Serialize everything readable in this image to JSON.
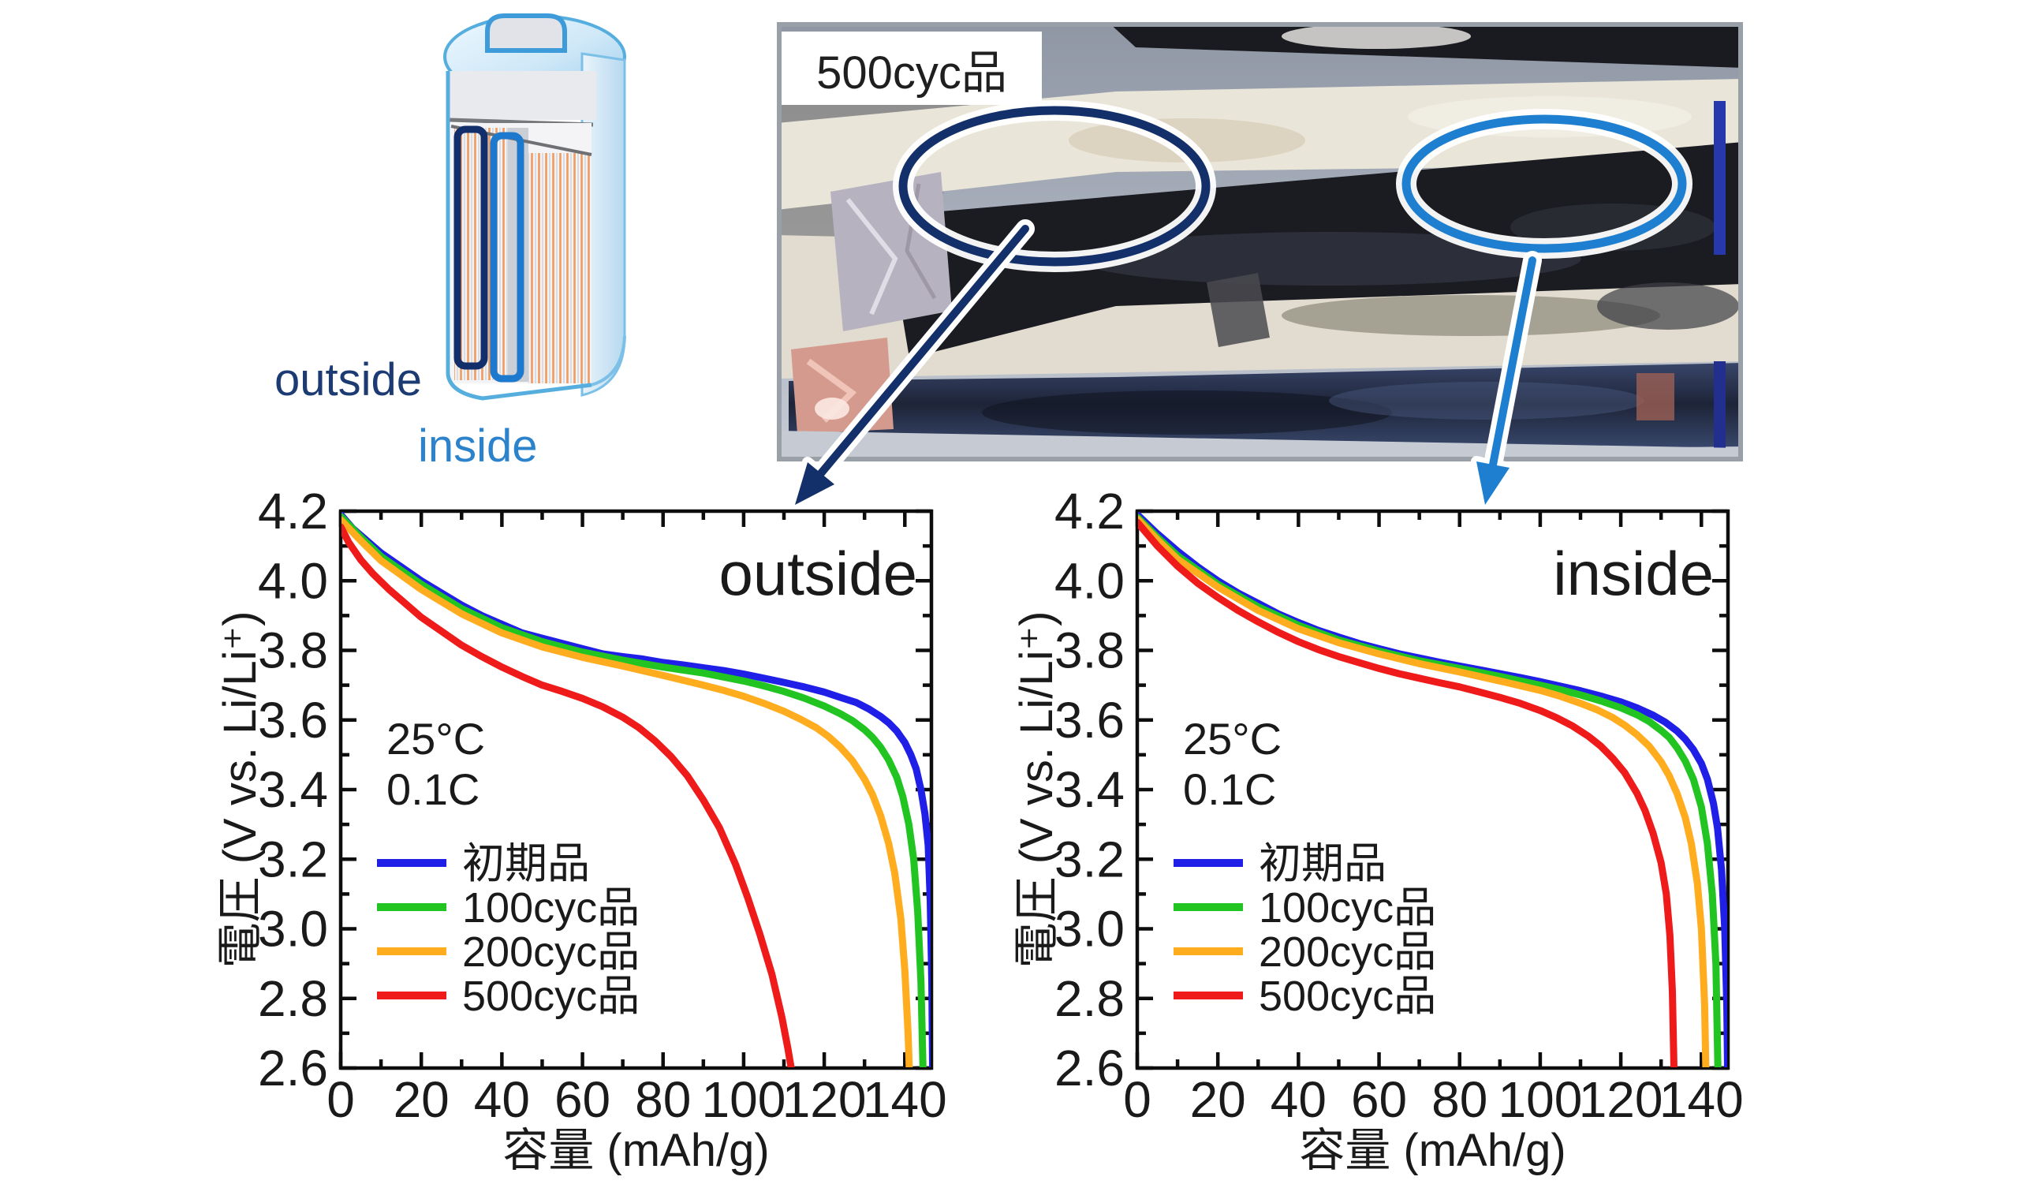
{
  "figure": {
    "description_labels": {
      "outside": "outside",
      "inside": "inside"
    },
    "photo_label": "500cyc品"
  },
  "colors": {
    "outside_accent": "#14306b",
    "inside_accent": "#1e7fd0",
    "series_initial": "#1f1fe8",
    "series_100cyc": "#21c421",
    "series_200cyc": "#ffac1e",
    "series_500cyc": "#ef1a1a"
  },
  "chart_data": [
    {
      "type": "line",
      "title": "outside",
      "xlabel": "容量 (mAh/g)",
      "ylabel": "電圧 (V vs. Li/Li⁺)",
      "xlim": [
        0,
        146.6
      ],
      "ylim": [
        2.6,
        4.2
      ],
      "x_ticks": [
        0,
        20,
        40,
        60,
        80,
        100,
        120,
        140
      ],
      "y_ticks": [
        2.6,
        2.8,
        3.0,
        3.2,
        3.4,
        3.6,
        3.8,
        4.0,
        4.2
      ],
      "grid": false,
      "legend_position": "inside lower left",
      "annotations": [
        "25°C",
        "0.1C"
      ],
      "series": [
        {
          "name": "初期品",
          "color": "#1f1fe8",
          "points": [
            [
              0,
              4.19
            ],
            [
              3,
              4.15
            ],
            [
              6,
              4.12
            ],
            [
              10,
              4.08
            ],
            [
              15,
              4.04
            ],
            [
              20,
              4.0
            ],
            [
              25,
              3.965
            ],
            [
              30,
              3.93
            ],
            [
              35,
              3.9
            ],
            [
              40,
              3.875
            ],
            [
              45,
              3.85
            ],
            [
              50,
              3.835
            ],
            [
              55,
              3.82
            ],
            [
              60,
              3.805
            ],
            [
              65,
              3.79
            ],
            [
              70,
              3.782
            ],
            [
              75,
              3.775
            ],
            [
              80,
              3.765
            ],
            [
              85,
              3.758
            ],
            [
              90,
              3.75
            ],
            [
              95,
              3.742
            ],
            [
              100,
              3.732
            ],
            [
              105,
              3.72
            ],
            [
              110,
              3.708
            ],
            [
              115,
              3.695
            ],
            [
              120,
              3.68
            ],
            [
              124,
              3.665
            ],
            [
              128,
              3.65
            ],
            [
              131,
              3.632
            ],
            [
              134,
              3.61
            ],
            [
              136,
              3.592
            ],
            [
              138,
              3.568
            ],
            [
              140,
              3.535
            ],
            [
              141.5,
              3.5
            ],
            [
              142.8,
              3.46
            ],
            [
              144,
              3.4
            ],
            [
              145,
              3.33
            ],
            [
              145.8,
              3.24
            ],
            [
              146.3,
              3.08
            ],
            [
              146.7,
              2.85
            ],
            [
              146.9,
              2.6
            ]
          ]
        },
        {
          "name": "100cyc品",
          "color": "#21c421",
          "points": [
            [
              0,
              4.185
            ],
            [
              5,
              4.125
            ],
            [
              10,
              4.07
            ],
            [
              20,
              3.99
            ],
            [
              30,
              3.92
            ],
            [
              40,
              3.865
            ],
            [
              50,
              3.825
            ],
            [
              60,
              3.795
            ],
            [
              70,
              3.772
            ],
            [
              80,
              3.752
            ],
            [
              90,
              3.735
            ],
            [
              100,
              3.712
            ],
            [
              105,
              3.698
            ],
            [
              110,
              3.682
            ],
            [
              115,
              3.663
            ],
            [
              120,
              3.64
            ],
            [
              124,
              3.618
            ],
            [
              127,
              3.598
            ],
            [
              130,
              3.572
            ],
            [
              132,
              3.55
            ],
            [
              134,
              3.522
            ],
            [
              136,
              3.485
            ],
            [
              138,
              3.435
            ],
            [
              139.5,
              3.38
            ],
            [
              141,
              3.3
            ],
            [
              142.2,
              3.2
            ],
            [
              143.2,
              3.05
            ],
            [
              144,
              2.85
            ],
            [
              144.5,
              2.6
            ]
          ]
        },
        {
          "name": "200cyc品",
          "color": "#ffac1e",
          "points": [
            [
              0,
              4.175
            ],
            [
              5,
              4.115
            ],
            [
              10,
              4.058
            ],
            [
              20,
              3.975
            ],
            [
              30,
              3.905
            ],
            [
              40,
              3.85
            ],
            [
              50,
              3.81
            ],
            [
              60,
              3.78
            ],
            [
              70,
              3.755
            ],
            [
              80,
              3.728
            ],
            [
              90,
              3.7
            ],
            [
              95,
              3.685
            ],
            [
              100,
              3.668
            ],
            [
              105,
              3.648
            ],
            [
              110,
              3.625
            ],
            [
              114,
              3.603
            ],
            [
              118,
              3.578
            ],
            [
              121,
              3.553
            ],
            [
              124,
              3.522
            ],
            [
              127,
              3.483
            ],
            [
              130,
              3.43
            ],
            [
              132,
              3.385
            ],
            [
              134,
              3.325
            ],
            [
              136,
              3.245
            ],
            [
              137.5,
              3.16
            ],
            [
              139,
              3.03
            ],
            [
              140,
              2.88
            ],
            [
              140.8,
              2.7
            ],
            [
              141.1,
              2.6
            ]
          ]
        },
        {
          "name": "500cyc品",
          "color": "#ef1a1a",
          "points": [
            [
              0,
              4.155
            ],
            [
              2,
              4.11
            ],
            [
              5,
              4.06
            ],
            [
              8,
              4.02
            ],
            [
              12,
              3.975
            ],
            [
              16,
              3.935
            ],
            [
              20,
              3.895
            ],
            [
              25,
              3.855
            ],
            [
              30,
              3.815
            ],
            [
              35,
              3.782
            ],
            [
              40,
              3.752
            ],
            [
              45,
              3.725
            ],
            [
              50,
              3.7
            ],
            [
              55,
              3.682
            ],
            [
              60,
              3.662
            ],
            [
              65,
              3.638
            ],
            [
              70,
              3.608
            ],
            [
              74,
              3.578
            ],
            [
              78,
              3.54
            ],
            [
              82,
              3.495
            ],
            [
              86,
              3.44
            ],
            [
              90,
              3.37
            ],
            [
              94,
              3.29
            ],
            [
              98,
              3.185
            ],
            [
              101,
              3.09
            ],
            [
              104,
              2.985
            ],
            [
              107,
              2.87
            ],
            [
              109.5,
              2.745
            ],
            [
              111,
              2.655
            ],
            [
              111.8,
              2.6
            ]
          ]
        }
      ]
    },
    {
      "type": "line",
      "title": "inside",
      "xlabel": "容量 (mAh/g)",
      "ylabel": "電圧 (V vs. Li/Li⁺)",
      "xlim": [
        0,
        146.6
      ],
      "ylim": [
        2.6,
        4.2
      ],
      "x_ticks": [
        0,
        20,
        40,
        60,
        80,
        100,
        120,
        140
      ],
      "y_ticks": [
        2.6,
        2.8,
        3.0,
        3.2,
        3.4,
        3.6,
        3.8,
        4.0,
        4.2
      ],
      "grid": false,
      "legend_position": "inside lower left",
      "annotations": [
        "25°C",
        "0.1C"
      ],
      "series": [
        {
          "name": "初期品",
          "color": "#1f1fe8",
          "points": [
            [
              0,
              4.19
            ],
            [
              5,
              4.135
            ],
            [
              10,
              4.085
            ],
            [
              15,
              4.04
            ],
            [
              20,
              4.0
            ],
            [
              25,
              3.965
            ],
            [
              30,
              3.935
            ],
            [
              35,
              3.905
            ],
            [
              40,
              3.88
            ],
            [
              45,
              3.857
            ],
            [
              50,
              3.838
            ],
            [
              55,
              3.82
            ],
            [
              60,
              3.805
            ],
            [
              65,
              3.79
            ],
            [
              70,
              3.778
            ],
            [
              75,
              3.766
            ],
            [
              80,
              3.755
            ],
            [
              85,
              3.744
            ],
            [
              90,
              3.733
            ],
            [
              95,
              3.722
            ],
            [
              100,
              3.71
            ],
            [
              105,
              3.697
            ],
            [
              110,
              3.684
            ],
            [
              115,
              3.669
            ],
            [
              120,
              3.652
            ],
            [
              124,
              3.635
            ],
            [
              128,
              3.614
            ],
            [
              131,
              3.594
            ],
            [
              134,
              3.568
            ],
            [
              136,
              3.545
            ],
            [
              138,
              3.515
            ],
            [
              140,
              3.475
            ],
            [
              141.5,
              3.43
            ],
            [
              143,
              3.36
            ],
            [
              144,
              3.29
            ],
            [
              145,
              3.17
            ],
            [
              145.8,
              3.0
            ],
            [
              146.3,
              2.78
            ],
            [
              146.5,
              2.6
            ]
          ]
        },
        {
          "name": "100cyc品",
          "color": "#21c421",
          "points": [
            [
              0,
              4.183
            ],
            [
              5,
              4.125
            ],
            [
              10,
              4.072
            ],
            [
              20,
              3.99
            ],
            [
              30,
              3.925
            ],
            [
              40,
              3.872
            ],
            [
              50,
              3.83
            ],
            [
              60,
              3.798
            ],
            [
              70,
              3.77
            ],
            [
              80,
              3.748
            ],
            [
              90,
              3.725
            ],
            [
              100,
              3.7
            ],
            [
              105,
              3.687
            ],
            [
              110,
              3.672
            ],
            [
              115,
              3.655
            ],
            [
              120,
              3.635
            ],
            [
              124,
              3.615
            ],
            [
              127,
              3.596
            ],
            [
              130,
              3.57
            ],
            [
              132,
              3.55
            ],
            [
              134,
              3.52
            ],
            [
              136,
              3.482
            ],
            [
              138,
              3.43
            ],
            [
              140,
              3.35
            ],
            [
              141.5,
              3.245
            ],
            [
              142.7,
              3.1
            ],
            [
              143.6,
              2.9
            ],
            [
              144.1,
              2.6
            ]
          ]
        },
        {
          "name": "200cyc品",
          "color": "#ffac1e",
          "points": [
            [
              0,
              4.178
            ],
            [
              5,
              4.118
            ],
            [
              10,
              4.062
            ],
            [
              20,
              3.982
            ],
            [
              30,
              3.915
            ],
            [
              40,
              3.862
            ],
            [
              50,
              3.822
            ],
            [
              60,
              3.79
            ],
            [
              70,
              3.762
            ],
            [
              80,
              3.738
            ],
            [
              90,
              3.712
            ],
            [
              100,
              3.685
            ],
            [
              105,
              3.668
            ],
            [
              110,
              3.648
            ],
            [
              114,
              3.63
            ],
            [
              118,
              3.607
            ],
            [
              121,
              3.585
            ],
            [
              124,
              3.558
            ],
            [
              127,
              3.525
            ],
            [
              130,
              3.48
            ],
            [
              132,
              3.44
            ],
            [
              134,
              3.388
            ],
            [
              136,
              3.32
            ],
            [
              137.5,
              3.245
            ],
            [
              139,
              3.13
            ],
            [
              140,
              3.0
            ],
            [
              140.8,
              2.78
            ],
            [
              141.1,
              2.6
            ]
          ]
        },
        {
          "name": "500cyc品",
          "color": "#ef1a1a",
          "points": [
            [
              0,
              4.168
            ],
            [
              5,
              4.1
            ],
            [
              10,
              4.042
            ],
            [
              15,
              3.993
            ],
            [
              20,
              3.952
            ],
            [
              25,
              3.915
            ],
            [
              30,
              3.882
            ],
            [
              35,
              3.852
            ],
            [
              40,
              3.825
            ],
            [
              45,
              3.802
            ],
            [
              50,
              3.782
            ],
            [
              55,
              3.765
            ],
            [
              60,
              3.748
            ],
            [
              65,
              3.733
            ],
            [
              70,
              3.72
            ],
            [
              75,
              3.707
            ],
            [
              80,
              3.695
            ],
            [
              85,
              3.68
            ],
            [
              90,
              3.665
            ],
            [
              95,
              3.648
            ],
            [
              100,
              3.627
            ],
            [
              104,
              3.607
            ],
            [
              108,
              3.583
            ],
            [
              112,
              3.553
            ],
            [
              115,
              3.525
            ],
            [
              118,
              3.49
            ],
            [
              121,
              3.448
            ],
            [
              124,
              3.39
            ],
            [
              126,
              3.34
            ],
            [
              128,
              3.275
            ],
            [
              130,
              3.19
            ],
            [
              131.3,
              3.1
            ],
            [
              132.2,
              2.98
            ],
            [
              132.8,
              2.82
            ],
            [
              133.2,
              2.6
            ]
          ]
        }
      ]
    }
  ]
}
